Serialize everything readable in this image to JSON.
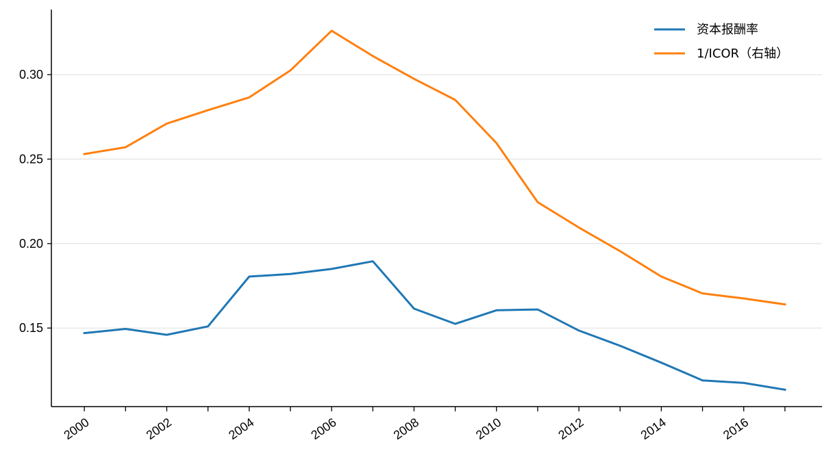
{
  "chart_data": {
    "type": "line",
    "title": "",
    "xlabel": "",
    "ylabel": "",
    "x": [
      2000,
      2001,
      2002,
      2003,
      2004,
      2005,
      2006,
      2007,
      2008,
      2009,
      2010,
      2011,
      2012,
      2013,
      2014,
      2015,
      2016,
      2017
    ],
    "x_tick_labels": [
      "2000",
      "2002",
      "2004",
      "2006",
      "2008",
      "2010",
      "2012",
      "2014",
      "2016"
    ],
    "xlim": [
      1999.2,
      2017.9
    ],
    "y_ticks": [
      0.15,
      0.2,
      0.25,
      0.3
    ],
    "y_tick_labels": [
      "0.15",
      "0.20",
      "0.25",
      "0.30"
    ],
    "ylim": [
      0.1035,
      0.3385
    ],
    "grid": "horizontal",
    "legend_position": "top-right",
    "series": [
      {
        "name": "资本报酬率",
        "color": "#1f77b4",
        "values": [
          0.147,
          0.1495,
          0.146,
          0.151,
          0.1805,
          0.182,
          0.185,
          0.1895,
          0.1615,
          0.1525,
          0.1605,
          0.161,
          0.1485,
          0.1395,
          0.1295,
          0.119,
          0.1175,
          0.1135
        ]
      },
      {
        "name": "1/ICOR（右轴）",
        "color": "#ff7f0e",
        "values": [
          0.253,
          0.257,
          0.271,
          0.279,
          0.2865,
          0.3025,
          0.326,
          0.311,
          0.2975,
          0.285,
          0.2595,
          0.2245,
          0.2095,
          0.1955,
          0.1805,
          0.1705,
          0.1675,
          0.164
        ]
      }
    ]
  }
}
